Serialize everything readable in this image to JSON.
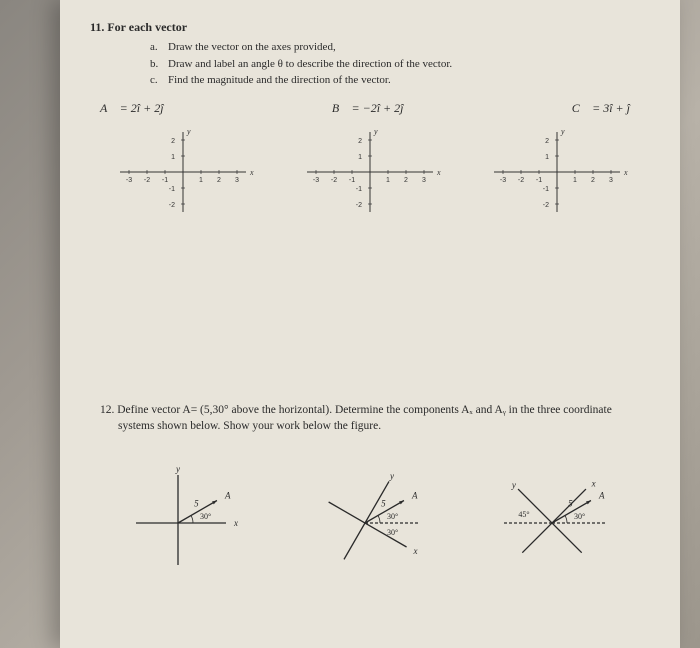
{
  "q11": {
    "number": "11.",
    "title": "For each vector",
    "items": [
      {
        "letter": "a.",
        "text": "Draw the vector on the axes provided,"
      },
      {
        "letter": "b.",
        "text": "Draw and label an angle θ  to describe the direction of the vector."
      },
      {
        "letter": "c.",
        "text": "Find the magnitude and the direction of the vector."
      }
    ],
    "vectors": {
      "A": "A⃗ = 2î + 2ĵ",
      "B": "B⃗ = −2î + 2ĵ",
      "C": "C⃗ = 3î + ĵ"
    },
    "axes": {
      "x_ticks": [
        "-3",
        "-2",
        "-1",
        "1",
        "2",
        "3"
      ],
      "y_ticks": [
        "-2",
        "-1",
        "1",
        "2"
      ],
      "x_label": "x",
      "y_label": "y",
      "x_range": [
        -3.5,
        3.5
      ],
      "y_range": [
        -2.5,
        2.5
      ],
      "tick_color": "#333333",
      "axis_color": "#333333"
    }
  },
  "q12": {
    "number": "12.",
    "text": "Define vector A= (5,30° above the horizontal). Determine the components Aₓ and Aᵧ in the three coordinate systems shown below. Show your work below the figure.",
    "vector_mag": "5",
    "vector_label": "A⃗",
    "systems": [
      {
        "vec_angle_deg": 30,
        "x_axis_angle_deg": 0,
        "y_axis_angle_deg": 90,
        "labels": [
          {
            "text": "y",
            "at": "y-top"
          },
          {
            "text": "x",
            "at": "x-right"
          },
          {
            "text": "5",
            "near": "vector-mid"
          },
          {
            "text": "30°",
            "near": "angle"
          }
        ]
      },
      {
        "vec_angle_deg": 30,
        "x_axis_angle_deg": -30,
        "y_axis_angle_deg": 60,
        "dashed_horizontal": true,
        "labels": [
          {
            "text": "y",
            "at": "y-top"
          },
          {
            "text": "x",
            "at": "x-right"
          },
          {
            "text": "5",
            "near": "vector-mid"
          },
          {
            "text": "30°",
            "near": "vec-to-horiz"
          },
          {
            "text": "30°",
            "near": "horiz-to-x"
          }
        ]
      },
      {
        "vec_angle_deg": 30,
        "x_axis_angle_deg": 45,
        "y_axis_angle_deg": 135,
        "dashed_horizontal": true,
        "labels": [
          {
            "text": "y",
            "at": "y-top"
          },
          {
            "text": "x",
            "at": "x-right"
          },
          {
            "text": "5",
            "near": "vector-mid"
          },
          {
            "text": "45°",
            "near": "y-to-horiz-left"
          },
          {
            "text": "30°",
            "near": "vec-to-horiz"
          }
        ]
      }
    ]
  },
  "colors": {
    "paper_bg": "#e8e4da",
    "text": "#2a2a2a"
  }
}
